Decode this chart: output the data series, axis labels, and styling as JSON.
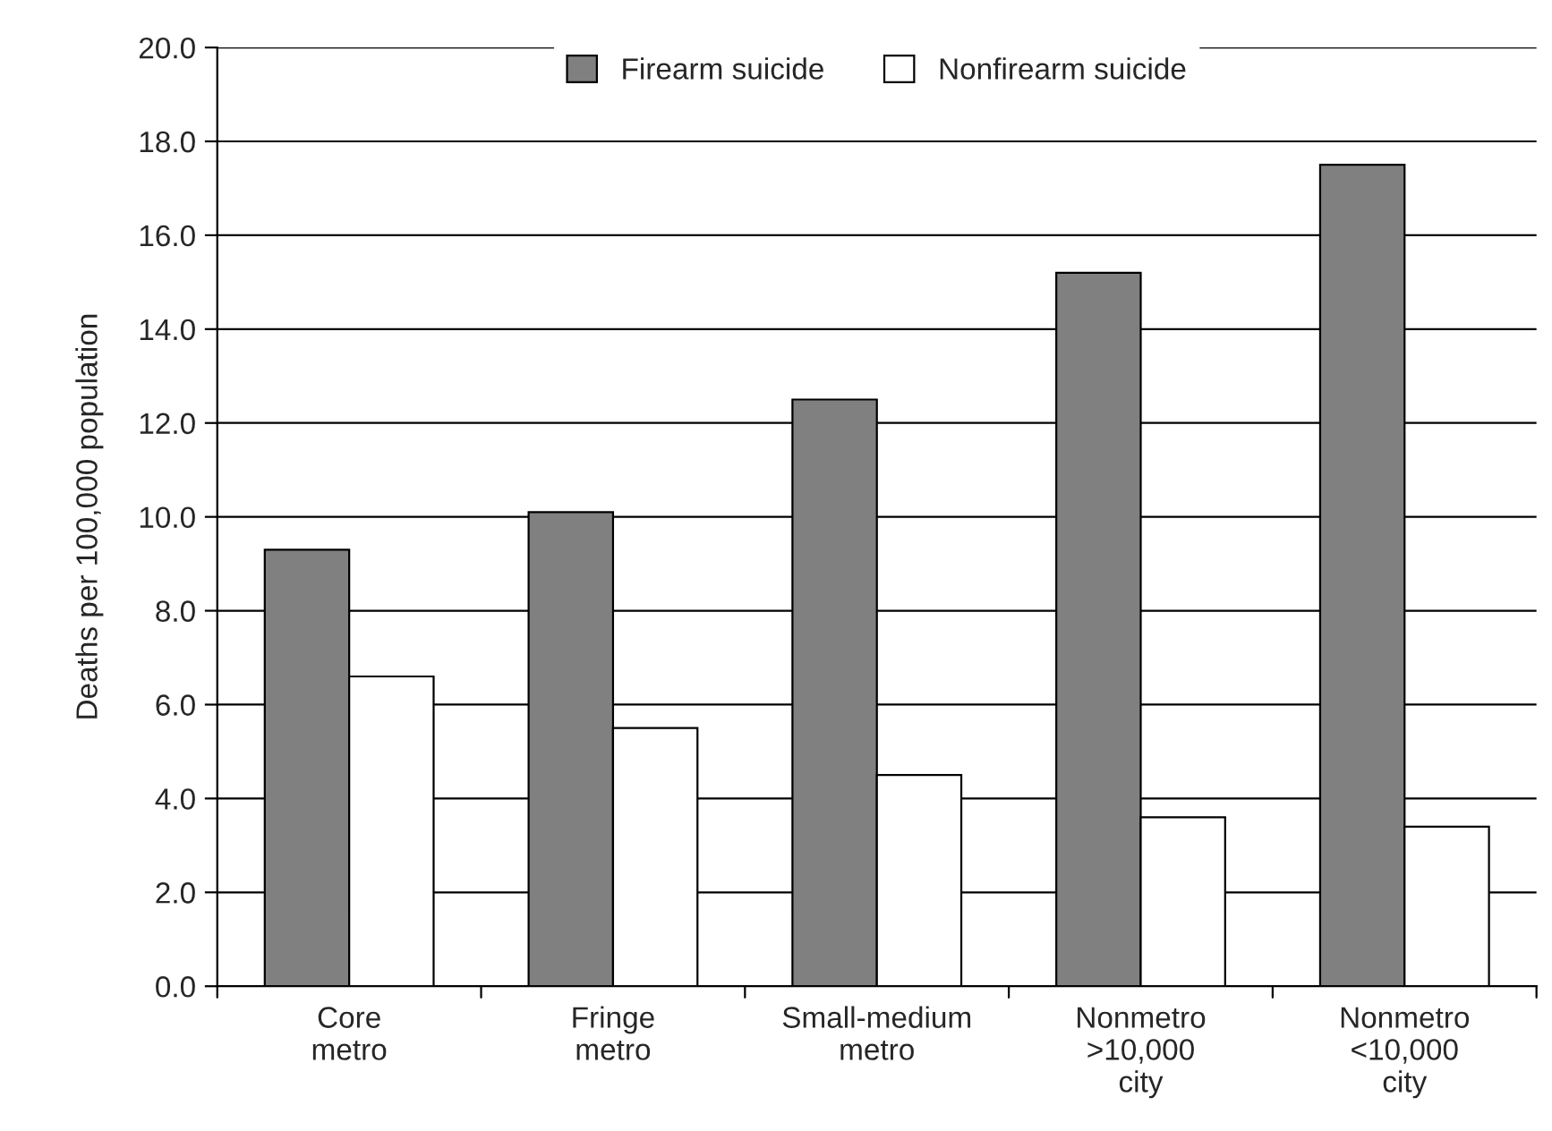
{
  "chart_data": {
    "type": "bar",
    "ylabel": "Deaths per 100,000 population",
    "categories": [
      "Core\nmetro",
      "Fringe\nmetro",
      "Small-medium\nmetro",
      "Nonmetro\n>10,000\ncity",
      "Nonmetro\n<10,000\ncity"
    ],
    "series": [
      {
        "name": "Firearm suicide",
        "color": "#808080",
        "values": [
          9.3,
          10.1,
          12.5,
          15.2,
          17.5
        ]
      },
      {
        "name": "Nonfirearm suicide",
        "color": "#ffffff",
        "values": [
          6.6,
          5.5,
          4.5,
          3.6,
          3.4
        ]
      }
    ],
    "ylim": [
      0,
      20
    ],
    "yticks": [
      {
        "value": 0,
        "label": "0.0"
      },
      {
        "value": 2,
        "label": "2.0"
      },
      {
        "value": 4,
        "label": "4.0"
      },
      {
        "value": 6,
        "label": "6.0"
      },
      {
        "value": 8,
        "label": "8.0"
      },
      {
        "value": 10,
        "label": "10.0"
      },
      {
        "value": 12,
        "label": "12.0"
      },
      {
        "value": 14,
        "label": "14.0"
      },
      {
        "value": 16,
        "label": "16.0"
      },
      {
        "value": 18,
        "label": "18.0"
      },
      {
        "value": 20,
        "label": "20.0"
      }
    ],
    "grid": "y",
    "legend": "top"
  }
}
